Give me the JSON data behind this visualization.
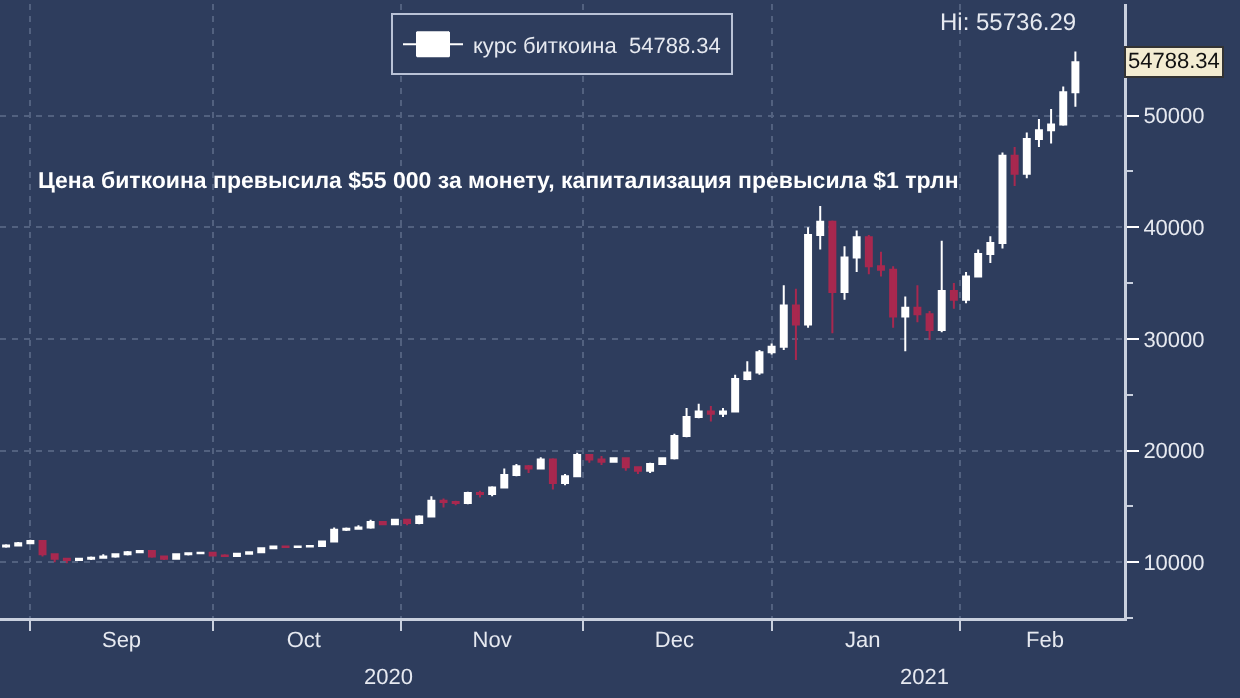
{
  "chart_data": {
    "type": "candlestick",
    "title": "Цена биткоина превысила $55 000 за монету, капитализация превысила $1 трлн",
    "x": [
      "2020-08-28",
      "2020-08-30",
      "2020-09-01",
      "2020-09-03",
      "2020-09-05",
      "2020-09-07",
      "2020-09-09",
      "2020-09-11",
      "2020-09-13",
      "2020-09-15",
      "2020-09-17",
      "2020-09-19",
      "2020-09-21",
      "2020-09-23",
      "2020-09-25",
      "2020-09-27",
      "2020-09-29",
      "2020-10-01",
      "2020-10-03",
      "2020-10-05",
      "2020-10-07",
      "2020-10-09",
      "2020-10-11",
      "2020-10-13",
      "2020-10-15",
      "2020-10-17",
      "2020-10-19",
      "2020-10-21",
      "2020-10-23",
      "2020-10-25",
      "2020-10-27",
      "2020-10-29",
      "2020-10-31",
      "2020-11-02",
      "2020-11-04",
      "2020-11-06",
      "2020-11-08",
      "2020-11-10",
      "2020-11-12",
      "2020-11-14",
      "2020-11-16",
      "2020-11-18",
      "2020-11-20",
      "2020-11-22",
      "2020-11-24",
      "2020-11-26",
      "2020-11-28",
      "2020-11-30",
      "2020-12-02",
      "2020-12-04",
      "2020-12-06",
      "2020-12-08",
      "2020-12-10",
      "2020-12-12",
      "2020-12-14",
      "2020-12-16",
      "2020-12-18",
      "2020-12-20",
      "2020-12-22",
      "2020-12-24",
      "2020-12-26",
      "2020-12-28",
      "2020-12-30",
      "2021-01-01",
      "2021-01-03",
      "2021-01-05",
      "2021-01-07",
      "2021-01-09",
      "2021-01-11",
      "2021-01-13",
      "2021-01-15",
      "2021-01-17",
      "2021-01-19",
      "2021-01-21",
      "2021-01-23",
      "2021-01-25",
      "2021-01-27",
      "2021-01-29",
      "2021-01-31",
      "2021-02-02",
      "2021-02-04",
      "2021-02-06",
      "2021-02-08",
      "2021-02-10",
      "2021-02-12",
      "2021-02-14",
      "2021-02-16",
      "2021-02-18",
      "2021-02-20"
    ],
    "series": [
      {
        "name": "курс биткоина  54788.34",
        "colors": [
          "#ffffff",
          "#ffffff",
          "#ffffff",
          "#a8284f",
          "#a8284f",
          "#a8284f",
          "#ffffff",
          "#ffffff",
          "#ffffff",
          "#ffffff",
          "#ffffff",
          "#ffffff",
          "#a8284f",
          "#a8284f",
          "#ffffff",
          "#ffffff",
          "#ffffff",
          "#a8284f",
          "#a8284f",
          "#ffffff",
          "#ffffff",
          "#ffffff",
          "#ffffff",
          "#a8284f",
          "#ffffff",
          "#ffffff",
          "#ffffff",
          "#ffffff",
          "#ffffff",
          "#ffffff",
          "#ffffff",
          "#a8284f",
          "#ffffff",
          "#a8284f",
          "#ffffff",
          "#ffffff",
          "#a8284f",
          "#a8284f",
          "#ffffff",
          "#a8284f",
          "#ffffff",
          "#ffffff",
          "#ffffff",
          "#a8284f",
          "#ffffff",
          "#a8284f",
          "#ffffff",
          "#ffffff",
          "#a8284f",
          "#a8284f",
          "#ffffff",
          "#a8284f",
          "#a8284f",
          "#ffffff",
          "#ffffff",
          "#ffffff",
          "#ffffff",
          "#ffffff",
          "#a8284f",
          "#ffffff",
          "#ffffff",
          "#ffffff",
          "#ffffff",
          "#ffffff",
          "#ffffff",
          "#a8284f",
          "#ffffff",
          "#ffffff",
          "#a8284f",
          "#ffffff",
          "#ffffff",
          "#a8284f",
          "#a8284f",
          "#a8284f",
          "#ffffff",
          "#a8284f",
          "#a8284f",
          "#ffffff",
          "#a8284f",
          "#ffffff",
          "#ffffff",
          "#ffffff",
          "#ffffff",
          "#a8284f",
          "#ffffff",
          "#ffffff",
          "#ffffff",
          "#ffffff",
          "#ffffff"
        ],
        "ohlc": [
          [
            11400,
            11600,
            11300,
            11500
          ],
          [
            11500,
            11800,
            11500,
            11700
          ],
          [
            11700,
            12000,
            11600,
            11900
          ],
          [
            11900,
            11950,
            10500,
            10700
          ],
          [
            10700,
            10800,
            10000,
            10300
          ],
          [
            10300,
            10400,
            9900,
            10200
          ],
          [
            10200,
            10400,
            10100,
            10300
          ],
          [
            10300,
            10500,
            10200,
            10400
          ],
          [
            10400,
            10700,
            10300,
            10500
          ],
          [
            10500,
            10800,
            10400,
            10700
          ],
          [
            10700,
            11000,
            10600,
            10900
          ],
          [
            10900,
            11100,
            10800,
            11000
          ],
          [
            11000,
            11000,
            10400,
            10500
          ],
          [
            10500,
            10600,
            10200,
            10300
          ],
          [
            10300,
            10800,
            10300,
            10700
          ],
          [
            10700,
            10900,
            10600,
            10800
          ],
          [
            10800,
            10900,
            10700,
            10850
          ],
          [
            10850,
            10900,
            10500,
            10600
          ],
          [
            10600,
            10700,
            10500,
            10550
          ],
          [
            10550,
            10800,
            10500,
            10750
          ],
          [
            10750,
            10950,
            10700,
            10900
          ],
          [
            10900,
            11300,
            10850,
            11250
          ],
          [
            11250,
            11500,
            11200,
            11400
          ],
          [
            11400,
            11500,
            11300,
            11350
          ],
          [
            11350,
            11500,
            11300,
            11400
          ],
          [
            11400,
            11500,
            11350,
            11450
          ],
          [
            11450,
            11900,
            11400,
            11850
          ],
          [
            11850,
            13100,
            11800,
            12900
          ],
          [
            12900,
            13100,
            12800,
            13000
          ],
          [
            13000,
            13300,
            12900,
            13100
          ],
          [
            13100,
            13800,
            13000,
            13600
          ],
          [
            13600,
            13700,
            13300,
            13400
          ],
          [
            13400,
            13900,
            13300,
            13800
          ],
          [
            13800,
            13900,
            13300,
            13500
          ],
          [
            13500,
            14200,
            13400,
            14100
          ],
          [
            14100,
            15900,
            14000,
            15500
          ],
          [
            15500,
            15700,
            14900,
            15400
          ],
          [
            15400,
            15500,
            15100,
            15300
          ],
          [
            15300,
            16300,
            15200,
            16200
          ],
          [
            16200,
            16400,
            15800,
            16100
          ],
          [
            16100,
            16800,
            15900,
            16700
          ],
          [
            16700,
            18400,
            16600,
            17800
          ],
          [
            17800,
            18800,
            17700,
            18600
          ],
          [
            18600,
            18700,
            18000,
            18400
          ],
          [
            18400,
            19400,
            18300,
            19200
          ],
          [
            19200,
            19300,
            16500,
            17100
          ],
          [
            17100,
            17900,
            16900,
            17700
          ],
          [
            17700,
            19800,
            17600,
            19600
          ],
          [
            19600,
            19700,
            18900,
            19200
          ],
          [
            19200,
            19500,
            18700,
            19000
          ],
          [
            19000,
            19400,
            18900,
            19300
          ],
          [
            19300,
            19400,
            18200,
            18500
          ],
          [
            18500,
            18600,
            17900,
            18200
          ],
          [
            18200,
            18900,
            18000,
            18800
          ],
          [
            18800,
            19400,
            18700,
            19300
          ],
          [
            19300,
            21500,
            19200,
            21300
          ],
          [
            21300,
            23800,
            21200,
            23000
          ],
          [
            23000,
            24200,
            22900,
            23500
          ],
          [
            23500,
            24000,
            22600,
            23300
          ],
          [
            23300,
            23800,
            23000,
            23500
          ],
          [
            23500,
            26800,
            23400,
            26400
          ],
          [
            26400,
            28000,
            26300,
            27000
          ],
          [
            27000,
            29000,
            26800,
            28800
          ],
          [
            28800,
            29600,
            28600,
            29300
          ],
          [
            29300,
            34800,
            29000,
            33000
          ],
          [
            33000,
            34500,
            28100,
            31300
          ],
          [
            31300,
            40000,
            31000,
            39300
          ],
          [
            39300,
            41900,
            38000,
            40500
          ],
          [
            40500,
            40600,
            30500,
            34200
          ],
          [
            34200,
            38300,
            33500,
            37300
          ],
          [
            37300,
            39700,
            36000,
            39100
          ],
          [
            39100,
            39300,
            35800,
            36500
          ],
          [
            36500,
            37800,
            35600,
            36200
          ],
          [
            36200,
            36500,
            31000,
            32000
          ],
          [
            32000,
            33800,
            28900,
            32800
          ],
          [
            32800,
            34800,
            31500,
            32200
          ],
          [
            32200,
            32500,
            29900,
            30800
          ],
          [
            30800,
            38800,
            30600,
            34300
          ],
          [
            34300,
            35000,
            32700,
            33500
          ],
          [
            33500,
            36000,
            33200,
            35600
          ],
          [
            35600,
            38000,
            35500,
            37600
          ],
          [
            37600,
            39200,
            36800,
            38600
          ],
          [
            38600,
            46700,
            38100,
            46400
          ],
          [
            46400,
            47200,
            43700,
            44800
          ],
          [
            44800,
            48500,
            44400,
            47900
          ],
          [
            47900,
            49700,
            47200,
            48700
          ],
          [
            48700,
            50600,
            47500,
            49200
          ],
          [
            49200,
            52600,
            49100,
            52100
          ],
          [
            52100,
            55736.29,
            50800,
            54788.34
          ]
        ]
      }
    ],
    "xlim": [
      "2020-08-27",
      "2021-02-28"
    ],
    "xticks": [
      {
        "value": "2020-09-01",
        "label": null
      },
      {
        "value": "2020-10-01",
        "label": null
      },
      {
        "value": "2020-11-01",
        "label": null
      },
      {
        "value": "2020-12-01",
        "label": null
      },
      {
        "value": "2021-01-01",
        "label": null
      },
      {
        "value": "2021-02-01",
        "label": null
      },
      {
        "value": "2020-09-16",
        "label": "Sep"
      },
      {
        "value": "2020-10-16",
        "label": "Oct"
      },
      {
        "value": "2020-11-16",
        "label": "Nov"
      },
      {
        "value": "2020-12-16",
        "label": "Dec"
      },
      {
        "value": "2021-01-16",
        "label": "Jan"
      },
      {
        "value": "2021-02-15",
        "label": "Feb"
      }
    ],
    "ylim": [
      5000,
      60000
    ],
    "yticks": [
      {
        "value": 5000,
        "label": null
      },
      10000,
      {
        "value": 15000,
        "label": null
      },
      20000,
      {
        "value": 25000,
        "label": null
      },
      30000,
      {
        "value": 35000,
        "label": null
      },
      40000,
      {
        "value": 45000,
        "label": null
      },
      50000,
      {
        "value": 55000,
        "label": null
      }
    ],
    "grid": true,
    "legend": "top",
    "annotations": [
      "2020",
      "2021",
      {
        "text": "Hi: 55736.29",
        "x": "2021-02-20",
        "y": 55736.29
      },
      {
        "text": "54788.34",
        "x": "2021-02-20",
        "y": 54788.34
      }
    ]
  }
}
